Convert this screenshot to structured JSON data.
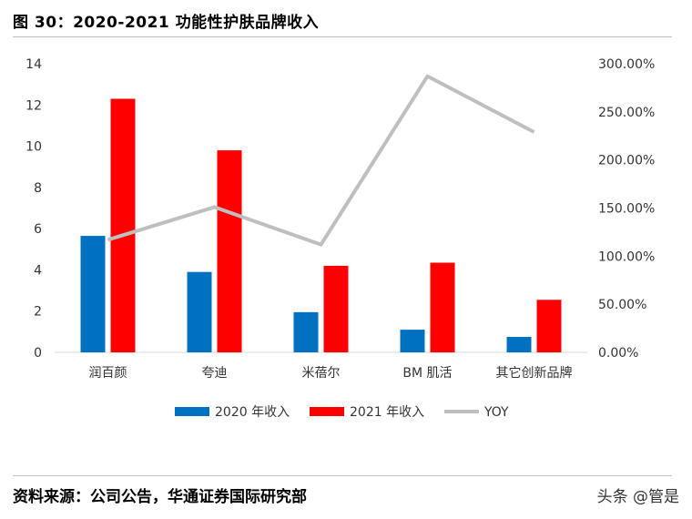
{
  "figure": {
    "title": "图 30：2020-2021 功能性护肤品牌收入",
    "source": "资料来源：公司公告，华通证券国际研究部",
    "watermark": "头条 @管是"
  },
  "chart_data": {
    "type": "bar",
    "categories": [
      "润百颜",
      "夸迪",
      "米蓓尔",
      "BM 肌活",
      "其它创新品牌"
    ],
    "series": [
      {
        "name": "2020 年收入",
        "type": "bar",
        "axis": "left",
        "color": "#0070C0",
        "values": [
          5.65,
          3.9,
          1.95,
          1.1,
          0.75
        ]
      },
      {
        "name": "2021 年收入",
        "type": "bar",
        "axis": "left",
        "color": "#FF0000",
        "values": [
          12.3,
          9.8,
          4.2,
          4.35,
          2.55
        ]
      },
      {
        "name": "YOY",
        "type": "line",
        "axis": "right",
        "color": "#BFBFBF",
        "values": [
          1.17,
          1.51,
          1.12,
          2.87,
          2.29
        ]
      }
    ],
    "y_left": {
      "ylim": [
        0,
        14
      ],
      "ticks": [
        "0",
        "2",
        "4",
        "6",
        "8",
        "10",
        "12",
        "14"
      ]
    },
    "y_right": {
      "ylim": [
        0,
        3.0
      ],
      "ticks": [
        "0.00%",
        "50.00%",
        "100.00%",
        "150.00%",
        "200.00%",
        "250.00%",
        "300.00%"
      ]
    },
    "grid": false,
    "legend": "bottom"
  }
}
